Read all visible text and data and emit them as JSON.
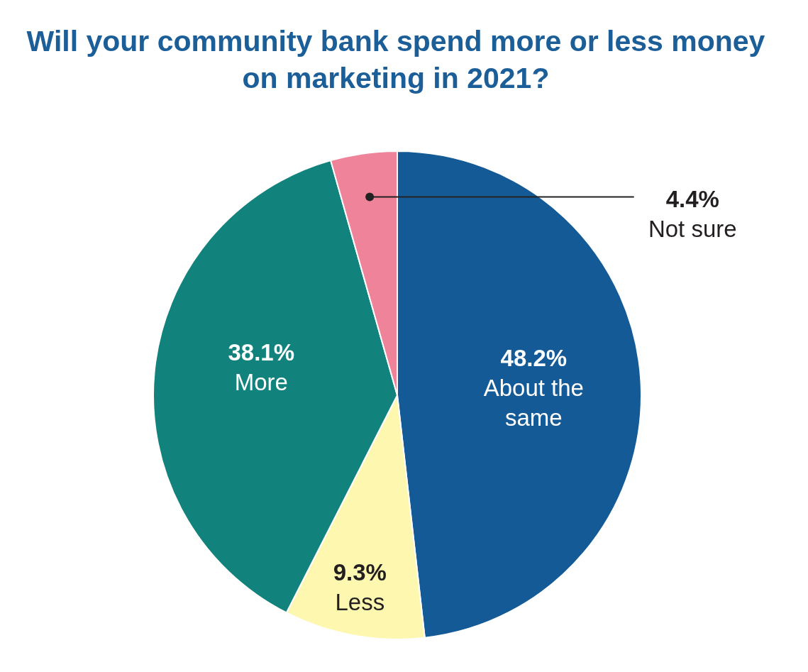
{
  "chart_data": {
    "type": "pie",
    "title": "Will your community bank spend more or less money on marketing in 2021?",
    "categories": [
      "About the same",
      "Less",
      "More",
      "Not sure"
    ],
    "values": [
      48.2,
      9.3,
      38.1,
      4.4
    ],
    "colors": [
      "#145a96",
      "#fdf7b0",
      "#11837c",
      "#ef8399"
    ],
    "value_labels": [
      "48.2%",
      "9.3%",
      "38.1%",
      "4.4%"
    ]
  }
}
